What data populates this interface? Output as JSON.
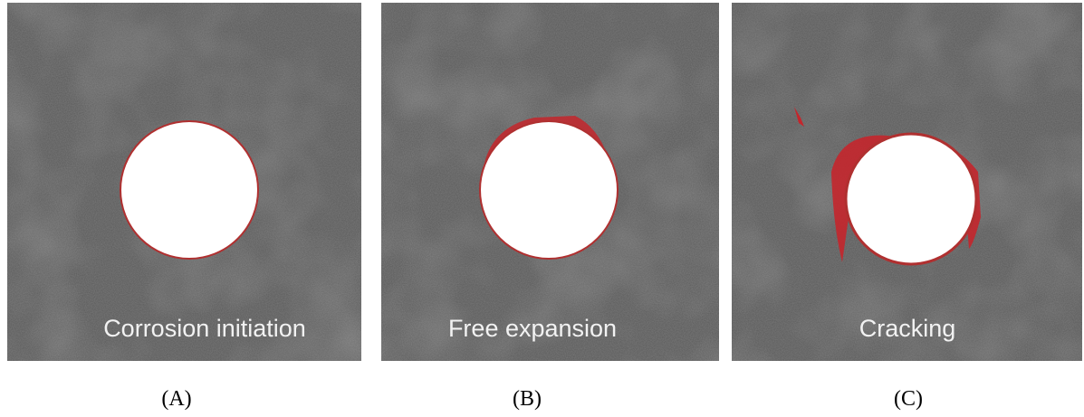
{
  "panels": [
    {
      "caption": "Corrosion initiation",
      "label": "(A)"
    },
    {
      "caption": "Free expansion",
      "label": "(B)"
    },
    {
      "caption": "Cracking",
      "label": "(C)"
    }
  ]
}
